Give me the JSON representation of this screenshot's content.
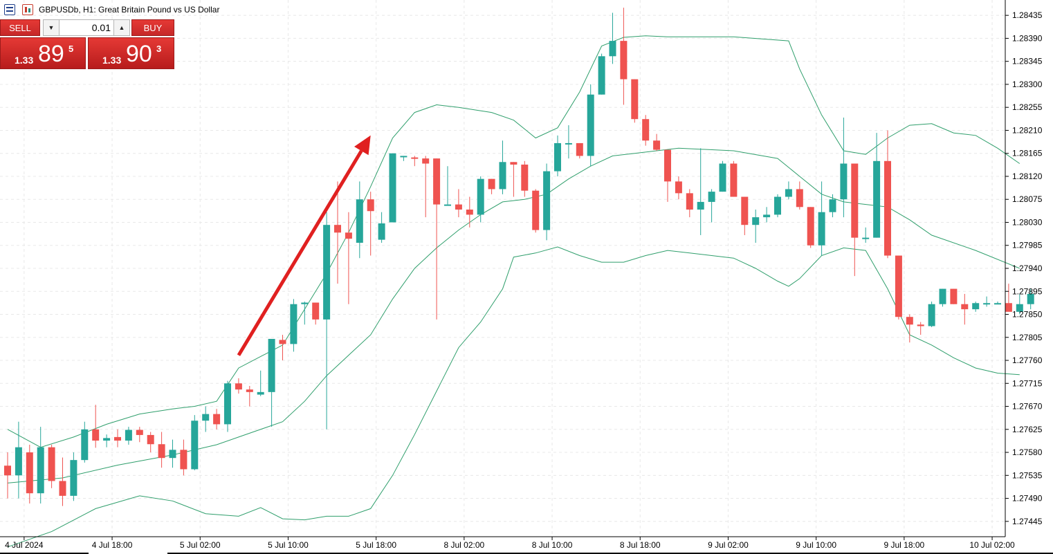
{
  "window": {
    "title": "GBPUSDb, H1:  Great Britain Pound vs US Dollar",
    "icons": [
      "market-watch-icon",
      "chart-window-icon"
    ]
  },
  "one_click": {
    "sell_label": "SELL",
    "buy_label": "BUY",
    "volume": "0.01",
    "bid": {
      "small": "1.33",
      "big": "89",
      "sup": "5"
    },
    "ask": {
      "small": "1.33",
      "big": "90",
      "sup": "3"
    }
  },
  "colors": {
    "bull": "#26a69a",
    "bear": "#ef5350",
    "bands": "#2e9e6b",
    "arrow": "#e02020",
    "grid": "#e8e8e8",
    "panel": "#d32f2f"
  },
  "chart_data": {
    "type": "candlestick",
    "title": "",
    "timeframe": "H1",
    "ylim": [
      1.27415,
      1.28465
    ],
    "y_ticks": [
      "1.28435",
      "1.28390",
      "1.28345",
      "1.28300",
      "1.28255",
      "1.28210",
      "1.28165",
      "1.28120",
      "1.28075",
      "1.28030",
      "1.27985",
      "1.27940",
      "1.27895",
      "1.27850",
      "1.27805",
      "1.27760",
      "1.27715",
      "1.27670",
      "1.27625",
      "1.27580",
      "1.27535",
      "1.27490",
      "1.27445"
    ],
    "x_labels": [
      {
        "idx": 1.5,
        "label": "4 Jul 2024"
      },
      {
        "idx": 9.5,
        "label": "4 Jul 18:00"
      },
      {
        "idx": 17.5,
        "label": "5 Jul 02:00"
      },
      {
        "idx": 25.5,
        "label": "5 Jul 10:00"
      },
      {
        "idx": 33.5,
        "label": "5 Jul 18:00"
      },
      {
        "idx": 41.5,
        "label": "8 Jul 02:00"
      },
      {
        "idx": 49.5,
        "label": "8 Jul 10:00"
      },
      {
        "idx": 57.5,
        "label": "8 Jul 18:00"
      },
      {
        "idx": 65.5,
        "label": "9 Jul 02:00"
      },
      {
        "idx": 73.5,
        "label": "9 Jul 10:00"
      },
      {
        "idx": 81.5,
        "label": "9 Jul 18:00"
      },
      {
        "idx": 89.5,
        "label": "10 Jul 02:00"
      }
    ],
    "candles": [
      [
        1.27554,
        1.2758,
        1.2749,
        1.27535
      ],
      [
        1.27535,
        1.2764,
        1.2749,
        1.2759
      ],
      [
        1.2758,
        1.27595,
        1.2748,
        1.275
      ],
      [
        1.275,
        1.2763,
        1.2748,
        1.2759
      ],
      [
        1.2759,
        1.27595,
        1.2751,
        1.27524
      ],
      [
        1.27524,
        1.2757,
        1.27475,
        1.27495
      ],
      [
        1.27495,
        1.2758,
        1.27485,
        1.27565
      ],
      [
        1.27565,
        1.2764,
        1.2756,
        1.27625
      ],
      [
        1.27625,
        1.27673,
        1.27589,
        1.27603
      ],
      [
        1.27603,
        1.27615,
        1.2759,
        1.27608
      ],
      [
        1.2761,
        1.27625,
        1.2759,
        1.27603
      ],
      [
        1.27603,
        1.2763,
        1.27595,
        1.27624
      ],
      [
        1.27624,
        1.2763,
        1.276,
        1.27614
      ],
      [
        1.27614,
        1.2762,
        1.2758,
        1.27596
      ],
      [
        1.27596,
        1.2762,
        1.2755,
        1.27569
      ],
      [
        1.27569,
        1.27605,
        1.2755,
        1.27585
      ],
      [
        1.27585,
        1.27605,
        1.27535,
        1.27547
      ],
      [
        1.27547,
        1.27653,
        1.27545,
        1.27642
      ],
      [
        1.27642,
        1.2767,
        1.2762,
        1.27655
      ],
      [
        1.27655,
        1.27665,
        1.27625,
        1.27635
      ],
      [
        1.27635,
        1.2772,
        1.2762,
        1.27715
      ],
      [
        1.27715,
        1.27725,
        1.27695,
        1.27703
      ],
      [
        1.27703,
        1.2771,
        1.2767,
        1.27698
      ],
      [
        1.27693,
        1.2774,
        1.2769,
        1.27698
      ],
      [
        1.27698,
        1.27802,
        1.2763,
        1.27802
      ],
      [
        1.278,
        1.2781,
        1.2776,
        1.27792
      ],
      [
        1.27792,
        1.2788,
        1.27777,
        1.2787
      ],
      [
        1.2787,
        1.27875,
        1.2783,
        1.27873
      ],
      [
        1.27873,
        1.27873,
        1.2783,
        1.2784
      ],
      [
        1.2784,
        1.2805,
        1.27625,
        1.28025
      ],
      [
        1.28025,
        1.2811,
        1.2791,
        1.2801
      ],
      [
        1.2801,
        1.2805,
        1.2787,
        1.27998
      ],
      [
        1.2799,
        1.2811,
        1.2796,
        1.28075
      ],
      [
        1.28075,
        1.2809,
        1.27965,
        1.28052
      ],
      [
        1.27996,
        1.2805,
        1.2799,
        1.28028
      ],
      [
        1.2803,
        1.28165,
        1.2803,
        1.28165
      ],
      [
        1.2816,
        1.2816,
        1.2815,
        1.2816
      ],
      [
        1.28157,
        1.2816,
        1.2814,
        1.28155
      ],
      [
        1.28155,
        1.2816,
        1.2804,
        1.28145
      ],
      [
        1.28155,
        1.28155,
        1.2784,
        1.28065
      ],
      [
        1.28065,
        1.2814,
        1.28065,
        1.28065
      ],
      [
        1.28065,
        1.28095,
        1.2804,
        1.28055
      ],
      [
        1.28055,
        1.2808,
        1.2802,
        1.28045
      ],
      [
        1.28045,
        1.2812,
        1.2803,
        1.28115
      ],
      [
        1.28115,
        1.28115,
        1.28085,
        1.28095
      ],
      [
        1.28095,
        1.2819,
        1.28085,
        1.28148
      ],
      [
        1.28148,
        1.28148,
        1.2808,
        1.28143
      ],
      [
        1.28143,
        1.2815,
        1.2808,
        1.28092
      ],
      [
        1.28092,
        1.28095,
        1.2801,
        1.28015
      ],
      [
        1.28015,
        1.28145,
        1.27995,
        1.2813
      ],
      [
        1.2813,
        1.282,
        1.2812,
        1.28185
      ],
      [
        1.28185,
        1.2822,
        1.28155,
        1.28185
      ],
      [
        1.28185,
        1.28185,
        1.28155,
        1.2816
      ],
      [
        1.2816,
        1.283,
        1.2814,
        1.2828
      ],
      [
        1.2828,
        1.2836,
        1.2828,
        1.28355
      ],
      [
        1.28355,
        1.2844,
        1.2834,
        1.28385
      ],
      [
        1.28385,
        1.2845,
        1.2826,
        1.2831
      ],
      [
        1.2831,
        1.2831,
        1.28225,
        1.28232
      ],
      [
        1.28232,
        1.2824,
        1.2818,
        1.2819
      ],
      [
        1.2819,
        1.28203,
        1.2817,
        1.28172
      ],
      [
        1.28172,
        1.28172,
        1.2807,
        1.2811
      ],
      [
        1.2811,
        1.2812,
        1.28075,
        1.28087
      ],
      [
        1.28087,
        1.28095,
        1.2804,
        1.28055
      ],
      [
        1.28055,
        1.28175,
        1.28005,
        1.2807
      ],
      [
        1.2807,
        1.28095,
        1.2803,
        1.2809
      ],
      [
        1.2809,
        1.2815,
        1.2809,
        1.28145
      ],
      [
        1.28145,
        1.2815,
        1.2808,
        1.2808
      ],
      [
        1.2808,
        1.2808,
        1.28005,
        1.28025
      ],
      [
        1.28025,
        1.28055,
        1.2799,
        1.2804
      ],
      [
        1.2804,
        1.2806,
        1.2803,
        1.28045
      ],
      [
        1.28045,
        1.28085,
        1.2804,
        1.2808
      ],
      [
        1.2808,
        1.2811,
        1.28075,
        1.28095
      ],
      [
        1.28095,
        1.2811,
        1.28055,
        1.2806
      ],
      [
        1.2806,
        1.2806,
        1.2798,
        1.27985
      ],
      [
        1.27985,
        1.2811,
        1.27965,
        1.2805
      ],
      [
        1.2805,
        1.28085,
        1.2804,
        1.28075
      ],
      [
        1.28075,
        1.28235,
        1.2804,
        1.28145
      ],
      [
        1.28145,
        1.28145,
        1.27925,
        1.28
      ],
      [
        1.28,
        1.2802,
        1.2799,
        1.28
      ],
      [
        1.28,
        1.28205,
        1.28,
        1.2815
      ],
      [
        1.2815,
        1.2821,
        1.2796,
        1.27965
      ],
      [
        1.27965,
        1.27965,
        1.2784,
        1.27845
      ],
      [
        1.27845,
        1.2785,
        1.27795,
        1.2783
      ],
      [
        1.2783,
        1.27835,
        1.2781,
        1.27827
      ],
      [
        1.27827,
        1.27875,
        1.27825,
        1.2787
      ],
      [
        1.2787,
        1.279,
        1.27865,
        1.279
      ],
      [
        1.279,
        1.279,
        1.2787,
        1.2787
      ],
      [
        1.2787,
        1.2789,
        1.2783,
        1.2786
      ],
      [
        1.2786,
        1.27875,
        1.27855,
        1.27872
      ],
      [
        1.27872,
        1.27885,
        1.27865,
        1.27872
      ],
      [
        1.27872,
        1.27875,
        1.2787,
        1.27872
      ],
      [
        1.27872,
        1.2791,
        1.2786,
        1.27855
      ],
      [
        1.27855,
        1.2789,
        1.2785,
        1.2787
      ],
      [
        1.2787,
        1.279,
        1.2786,
        1.2789
      ]
    ],
    "bollinger": {
      "upper": [
        [
          0,
          1.27625
        ],
        [
          3,
          1.2759
        ],
        [
          6,
          1.2761
        ],
        [
          9,
          1.27635
        ],
        [
          12,
          1.27655
        ],
        [
          15,
          1.27665
        ],
        [
          17,
          1.2767
        ],
        [
          19,
          1.2768
        ],
        [
          21,
          1.27745
        ],
        [
          25,
          1.2779
        ],
        [
          27,
          1.2786
        ],
        [
          29,
          1.2793
        ],
        [
          31,
          1.2801
        ],
        [
          33,
          1.281
        ],
        [
          35,
          1.28195
        ],
        [
          37,
          1.28245
        ],
        [
          39,
          1.2826
        ],
        [
          41,
          1.28255
        ],
        [
          44,
          1.28245
        ],
        [
          46,
          1.2823
        ],
        [
          48,
          1.28195
        ],
        [
          50,
          1.28215
        ],
        [
          52,
          1.28285
        ],
        [
          54,
          1.28375
        ],
        [
          56,
          1.28392
        ],
        [
          58,
          1.28395
        ],
        [
          60,
          1.28393
        ],
        [
          66,
          1.28393
        ],
        [
          71,
          1.28385
        ],
        [
          72,
          1.2833
        ],
        [
          74,
          1.2824
        ],
        [
          76,
          1.2817
        ],
        [
          78,
          1.28163
        ],
        [
          80,
          1.28195
        ],
        [
          82,
          1.2822
        ],
        [
          84,
          1.28223
        ],
        [
          86,
          1.28205
        ],
        [
          88,
          1.282
        ],
        [
          90,
          1.28175
        ],
        [
          92,
          1.28145
        ]
      ],
      "middle": [
        [
          0,
          1.2752
        ],
        [
          5,
          1.2753
        ],
        [
          10,
          1.27555
        ],
        [
          15,
          1.27575
        ],
        [
          19,
          1.27595
        ],
        [
          21,
          1.2761
        ],
        [
          25,
          1.2764
        ],
        [
          27,
          1.2768
        ],
        [
          29,
          1.2773
        ],
        [
          31,
          1.2777
        ],
        [
          33,
          1.2781
        ],
        [
          35,
          1.2788
        ],
        [
          37,
          1.2794
        ],
        [
          39,
          1.2798
        ],
        [
          41,
          1.28015
        ],
        [
          43,
          1.28045
        ],
        [
          45,
          1.2807
        ],
        [
          47,
          1.28075
        ],
        [
          49,
          1.28085
        ],
        [
          51,
          1.28115
        ],
        [
          53,
          1.2814
        ],
        [
          55,
          1.2816
        ],
        [
          57,
          1.28165
        ],
        [
          61,
          1.28175
        ],
        [
          66,
          1.2817
        ],
        [
          70,
          1.28155
        ],
        [
          72,
          1.2812
        ],
        [
          74,
          1.28085
        ],
        [
          76,
          1.2807
        ],
        [
          80,
          1.2806
        ],
        [
          82,
          1.28035
        ],
        [
          84,
          1.28005
        ],
        [
          88,
          1.27975
        ],
        [
          92,
          1.2794
        ]
      ],
      "lower": [
        [
          0,
          1.27395
        ],
        [
          4,
          1.27425
        ],
        [
          8,
          1.2747
        ],
        [
          12,
          1.27495
        ],
        [
          15,
          1.27485
        ],
        [
          18,
          1.2746
        ],
        [
          21,
          1.27455
        ],
        [
          23,
          1.27472
        ],
        [
          25,
          1.2745
        ],
        [
          27,
          1.27448
        ],
        [
          29,
          1.27455
        ],
        [
          31,
          1.27455
        ],
        [
          33,
          1.2747
        ],
        [
          35,
          1.27535
        ],
        [
          37,
          1.27615
        ],
        [
          39,
          1.277
        ],
        [
          41,
          1.27785
        ],
        [
          43,
          1.27835
        ],
        [
          45,
          1.279
        ],
        [
          46,
          1.27962
        ],
        [
          48,
          1.2797
        ],
        [
          50,
          1.27982
        ],
        [
          52,
          1.27965
        ],
        [
          54,
          1.27952
        ],
        [
          56,
          1.27952
        ],
        [
          58,
          1.27965
        ],
        [
          60,
          1.27975
        ],
        [
          62,
          1.2797
        ],
        [
          64,
          1.27965
        ],
        [
          66,
          1.2796
        ],
        [
          68,
          1.2794
        ],
        [
          70,
          1.27915
        ],
        [
          71,
          1.27905
        ],
        [
          72,
          1.2792
        ],
        [
          74,
          1.27965
        ],
        [
          76,
          1.2798
        ],
        [
          78,
          1.27975
        ],
        [
          80,
          1.279
        ],
        [
          82,
          1.2781
        ],
        [
          84,
          1.2779
        ],
        [
          86,
          1.27765
        ],
        [
          88,
          1.27745
        ],
        [
          90,
          1.27735
        ],
        [
          92,
          1.27732
        ]
      ]
    },
    "annotation": {
      "type": "arrow",
      "from": [
        21.0,
        1.2777
      ],
      "to": [
        33.0,
        1.282
      ]
    }
  }
}
